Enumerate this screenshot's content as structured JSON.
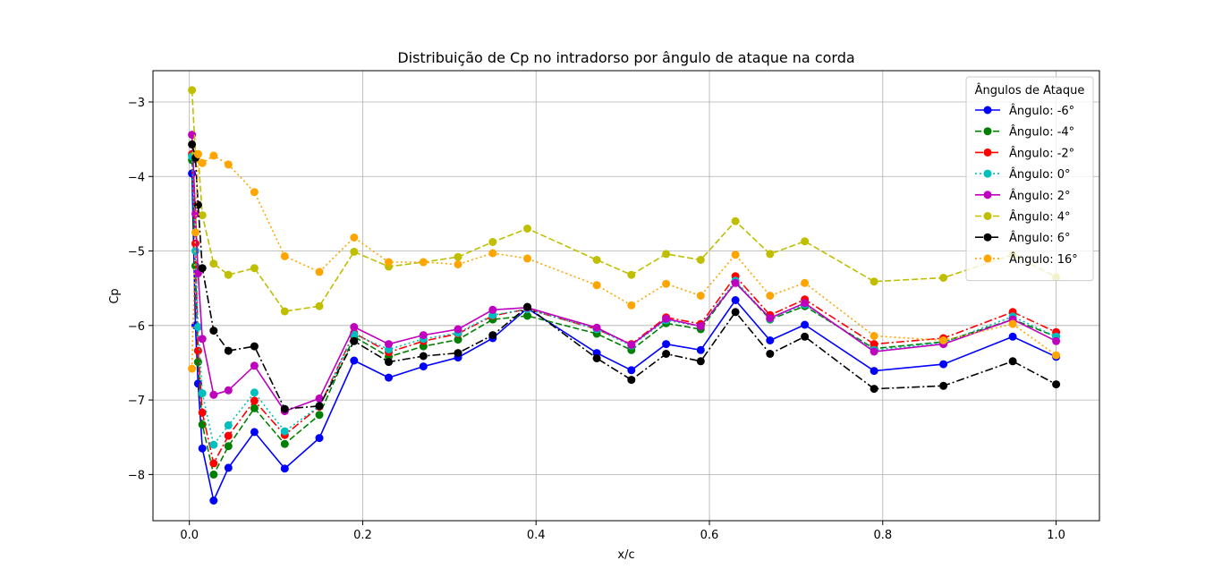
{
  "chart_data": {
    "type": "line",
    "title": "Distribuição de Cp no intradorso por ângulo de ataque na corda",
    "xlabel": "x/c",
    "ylabel": "Cp",
    "xlim": [
      -0.042,
      1.05
    ],
    "ylim": [
      -8.62,
      -2.58
    ],
    "xticks": [
      0.0,
      0.2,
      0.4,
      0.6,
      0.8,
      1.0
    ],
    "xtick_labels": [
      "0.0",
      "0.2",
      "0.4",
      "0.6",
      "0.8",
      "1.0"
    ],
    "yticks": [
      -3,
      -4,
      -5,
      -6,
      -7,
      -8
    ],
    "ytick_labels": [
      "−3",
      "−4",
      "−5",
      "−6",
      "−7",
      "−8"
    ],
    "grid": true,
    "legend_title": "Ângulos de Ataque",
    "legend_position": "top-right",
    "x": [
      0.003,
      0.007,
      0.01,
      0.015,
      0.028,
      0.045,
      0.075,
      0.11,
      0.15,
      0.19,
      0.23,
      0.27,
      0.31,
      0.35,
      0.39,
      0.47,
      0.51,
      0.55,
      0.59,
      0.63,
      0.67,
      0.71,
      0.79,
      0.87,
      0.95,
      1.0
    ],
    "series": [
      {
        "name": "Ângulo: -6°",
        "color": "#0000ff",
        "dash": "solid",
        "values": [
          -3.96,
          -6.0,
          -6.78,
          -7.65,
          -8.35,
          -7.91,
          -7.43,
          -7.92,
          -7.51,
          -6.47,
          -6.7,
          -6.55,
          -6.43,
          -6.17,
          -5.77,
          -6.37,
          -6.6,
          -6.25,
          -6.33,
          -5.66,
          -6.2,
          -5.99,
          -6.61,
          -6.52,
          -6.15,
          -6.42
        ]
      },
      {
        "name": "Ângulo: -4°",
        "color": "#008000",
        "dash": "dashed",
        "values": [
          -3.78,
          -5.2,
          -6.49,
          -7.33,
          -8.0,
          -7.62,
          -7.11,
          -7.59,
          -7.2,
          -6.15,
          -6.42,
          -6.28,
          -6.19,
          -5.92,
          -5.87,
          -6.11,
          -6.33,
          -5.97,
          -6.05,
          -5.42,
          -5.92,
          -5.74,
          -6.31,
          -6.22,
          -5.92,
          -6.15
        ]
      },
      {
        "name": "Ângulo: -2°",
        "color": "#ff0000",
        "dash": "dashdot",
        "values": [
          -3.7,
          -4.9,
          -6.34,
          -7.17,
          -7.85,
          -7.48,
          -7.01,
          -7.47,
          -7.09,
          -6.1,
          -6.36,
          -6.21,
          -6.11,
          -5.87,
          -5.78,
          -6.05,
          -6.25,
          -5.89,
          -5.98,
          -5.34,
          -5.86,
          -5.65,
          -6.25,
          -6.17,
          -5.82,
          -6.09
        ]
      },
      {
        "name": "Ângulo: 0°",
        "color": "#00bfbf",
        "dash": "dotted",
        "values": [
          -3.73,
          -5.0,
          -6.02,
          -6.91,
          -7.6,
          -7.34,
          -6.9,
          -7.42,
          -7.08,
          -6.12,
          -6.32,
          -6.18,
          -6.1,
          -5.86,
          -5.78,
          -6.05,
          -6.27,
          -5.93,
          -6.01,
          -5.4,
          -5.91,
          -5.72,
          -6.33,
          -6.23,
          -5.88,
          -6.15
        ]
      },
      {
        "name": "Ângulo: 2°",
        "color": "#bf00bf",
        "dash": "solid",
        "values": [
          -3.44,
          -4.5,
          -5.3,
          -6.18,
          -6.93,
          -6.87,
          -6.54,
          -7.15,
          -6.98,
          -6.02,
          -6.25,
          -6.13,
          -6.05,
          -5.79,
          -5.76,
          -6.03,
          -6.26,
          -5.91,
          -6.01,
          -5.43,
          -5.9,
          -5.7,
          -6.35,
          -6.25,
          -5.92,
          -6.21
        ]
      },
      {
        "name": "Ângulo: 4°",
        "color": "#bfbf00",
        "dash": "dashed",
        "values": [
          -2.84,
          -3.7,
          -3.7,
          -4.52,
          -5.17,
          -5.32,
          -5.23,
          -5.81,
          -5.74,
          -5.01,
          -5.21,
          -5.15,
          -5.08,
          -4.88,
          -4.7,
          -5.12,
          -5.32,
          -5.04,
          -5.12,
          -4.6,
          -5.04,
          -4.87,
          -5.41,
          -5.36,
          -5.05,
          -5.35
        ]
      },
      {
        "name": "Ângulo: 6°",
        "color": "#000000",
        "dash": "dashdot",
        "values": [
          -3.57,
          -3.75,
          -4.38,
          -5.23,
          -6.07,
          -6.34,
          -6.28,
          -7.12,
          -7.08,
          -6.21,
          -6.49,
          -6.41,
          -6.37,
          -6.13,
          -5.75,
          -6.44,
          -6.73,
          -6.38,
          -6.48,
          -5.82,
          -6.38,
          -6.15,
          -6.85,
          -6.81,
          -6.48,
          -6.79
        ]
      },
      {
        "name": "Ângulo: 16°",
        "color": "#ffa500",
        "dash": "dotted",
        "values": [
          -6.58,
          -4.75,
          -3.7,
          -3.82,
          -3.72,
          -3.84,
          -4.21,
          -5.07,
          -5.28,
          -4.82,
          -5.15,
          -5.15,
          -5.18,
          -5.03,
          -5.1,
          -5.46,
          -5.73,
          -5.44,
          -5.6,
          -5.05,
          -5.6,
          -5.43,
          -6.14,
          -6.2,
          -5.98,
          -6.4
        ]
      }
    ]
  }
}
